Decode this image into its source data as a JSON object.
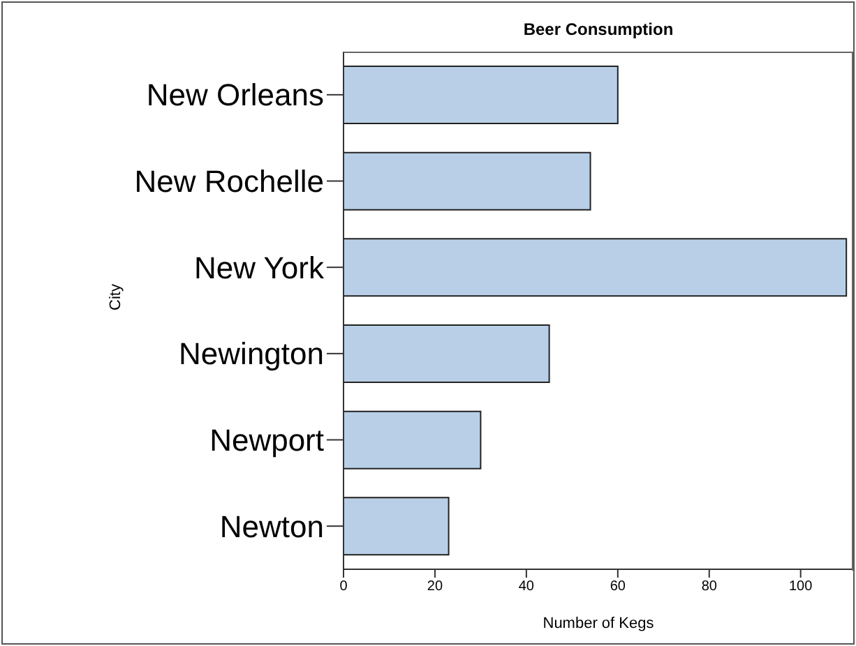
{
  "chart_data": {
    "type": "bar",
    "orientation": "horizontal",
    "title": "Beer Consumption",
    "xlabel": "Number of Kegs",
    "ylabel": "City",
    "categories": [
      "New Orleans",
      "New Rochelle",
      "New York",
      "Newington",
      "Newport",
      "Newton"
    ],
    "values": [
      60,
      54,
      110,
      45,
      30,
      23
    ],
    "color": "#b9cfe7",
    "xlim": [
      0,
      111.5
    ],
    "xticks": [
      0,
      20,
      40,
      60,
      80,
      100
    ],
    "grid": false,
    "legend": false
  }
}
